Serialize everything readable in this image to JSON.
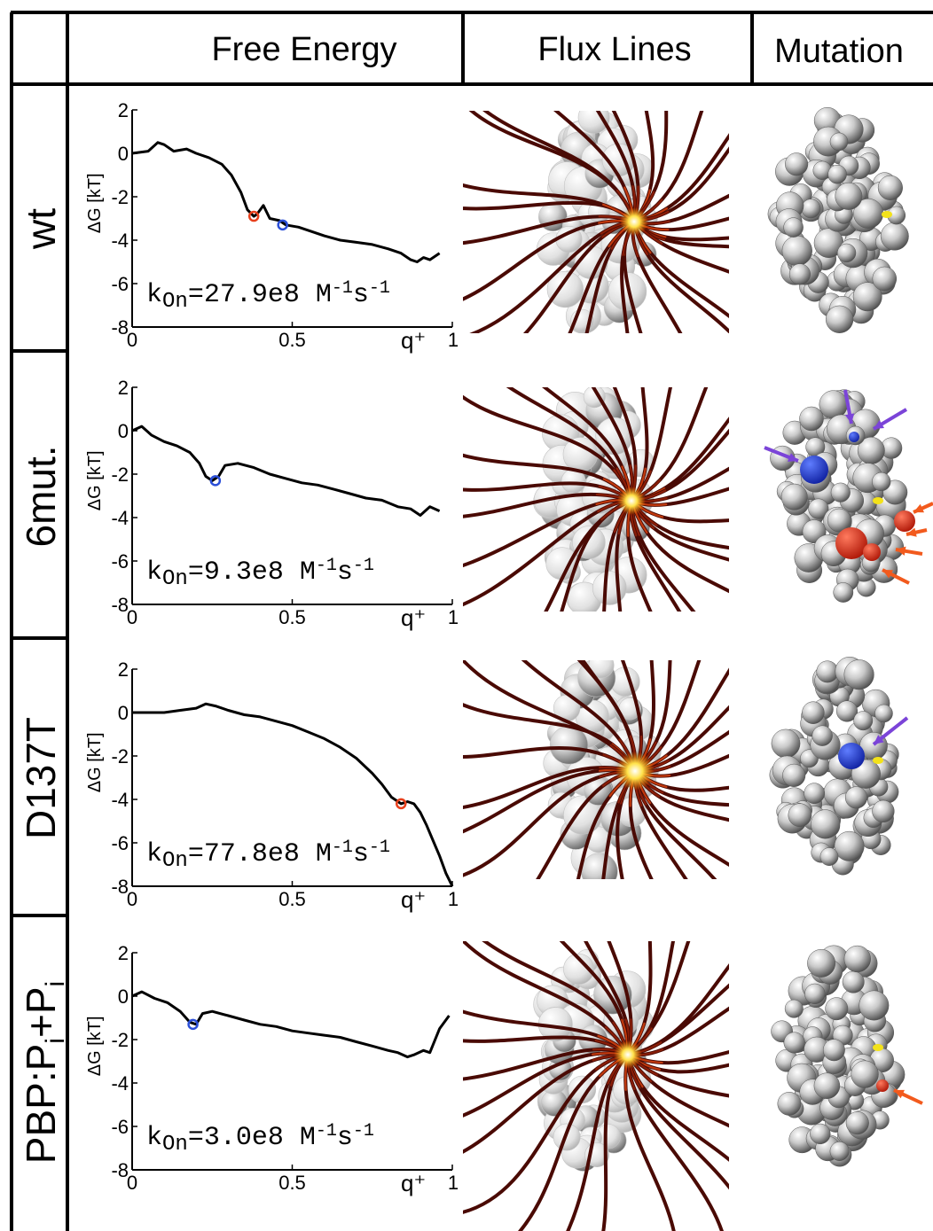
{
  "headers": {
    "free_energy": "Free Energy",
    "flux_lines": "Flux Lines",
    "mutation": "Mutation"
  },
  "chart_data": [
    {
      "type": "line",
      "row_label": "wt",
      "ylabel": "ΔG [kT]",
      "xlabel": "q⁺",
      "xlim": [
        0,
        1
      ],
      "ylim": [
        -8,
        2
      ],
      "xticks": [
        "0",
        "0.5",
        "1"
      ],
      "yticks": [
        "2",
        "0",
        "-2",
        "-4",
        "-6",
        "-8"
      ],
      "kon": {
        "prefix": "k",
        "sub": "On",
        "value": "=27.9e8 M",
        "exp1": "-1",
        "mid": "s",
        "exp2": "-1"
      },
      "x": [
        0,
        0.05,
        0.08,
        0.1,
        0.13,
        0.17,
        0.2,
        0.24,
        0.28,
        0.31,
        0.34,
        0.36,
        0.38,
        0.39,
        0.41,
        0.43,
        0.46,
        0.48,
        0.52,
        0.56,
        0.6,
        0.65,
        0.7,
        0.75,
        0.8,
        0.84,
        0.87,
        0.89,
        0.91,
        0.93,
        0.96
      ],
      "y": [
        0,
        0.1,
        0.5,
        0.4,
        0.1,
        0.2,
        0.0,
        -0.2,
        -0.5,
        -1.0,
        -1.8,
        -2.6,
        -2.9,
        -2.8,
        -2.4,
        -3.0,
        -3.1,
        -3.3,
        -3.4,
        -3.6,
        -3.8,
        -4.0,
        -4.1,
        -4.2,
        -4.4,
        -4.6,
        -4.9,
        -5.0,
        -4.8,
        -4.9,
        -4.6
      ],
      "markers": [
        {
          "x": 0.38,
          "y": -2.9,
          "color": "#e8401c"
        },
        {
          "x": 0.47,
          "y": -3.3,
          "color": "#2b4fd8"
        }
      ]
    },
    {
      "type": "line",
      "row_label": "6mut.",
      "ylabel": "ΔG [kT]",
      "xlabel": "q⁺",
      "xlim": [
        0,
        1
      ],
      "ylim": [
        -8,
        2
      ],
      "xticks": [
        "0",
        "0.5",
        "1"
      ],
      "yticks": [
        "2",
        "0",
        "-2",
        "-4",
        "-6",
        "-8"
      ],
      "kon": {
        "prefix": "k",
        "sub": "On",
        "value": "=9.3e8 M",
        "exp1": "-1",
        "mid": "s",
        "exp2": "-1"
      },
      "x": [
        0,
        0.03,
        0.06,
        0.1,
        0.14,
        0.18,
        0.21,
        0.23,
        0.25,
        0.27,
        0.29,
        0.33,
        0.38,
        0.43,
        0.48,
        0.53,
        0.58,
        0.63,
        0.68,
        0.73,
        0.78,
        0.83,
        0.87,
        0.9,
        0.93,
        0.96
      ],
      "y": [
        0,
        0.2,
        -0.2,
        -0.5,
        -0.7,
        -1.0,
        -1.5,
        -2.1,
        -2.3,
        -2.1,
        -1.6,
        -1.5,
        -1.7,
        -2.0,
        -2.2,
        -2.4,
        -2.5,
        -2.7,
        -2.9,
        -3.1,
        -3.2,
        -3.5,
        -3.6,
        -3.9,
        -3.5,
        -3.7
      ],
      "markers": [
        {
          "x": 0.26,
          "y": -2.3,
          "color": "#2b4fd8"
        }
      ]
    },
    {
      "type": "line",
      "row_label": "D137T",
      "ylabel": "ΔG [kT]",
      "xlabel": "q⁺",
      "xlim": [
        0,
        1
      ],
      "ylim": [
        -8,
        2
      ],
      "xticks": [
        "0",
        "0.5",
        "1"
      ],
      "yticks": [
        "2",
        "0",
        "-2",
        "-4",
        "-6",
        "-8"
      ],
      "kon": {
        "prefix": "k",
        "sub": "On",
        "value": "=77.8e8 M",
        "exp1": "-1",
        "mid": "s",
        "exp2": "-1"
      },
      "x": [
        0,
        0.05,
        0.1,
        0.15,
        0.2,
        0.23,
        0.26,
        0.3,
        0.35,
        0.4,
        0.45,
        0.5,
        0.55,
        0.6,
        0.65,
        0.7,
        0.75,
        0.78,
        0.81,
        0.84,
        0.86,
        0.88,
        0.9,
        0.92,
        0.94,
        0.96,
        0.98,
        1.0
      ],
      "y": [
        0,
        0,
        0,
        0.1,
        0.2,
        0.4,
        0.3,
        0.1,
        -0.1,
        -0.2,
        -0.4,
        -0.6,
        -0.9,
        -1.2,
        -1.6,
        -2.1,
        -2.8,
        -3.3,
        -3.9,
        -4.2,
        -4.1,
        -4.2,
        -4.6,
        -5.2,
        -5.9,
        -6.6,
        -7.4,
        -8.0
      ],
      "markers": [
        {
          "x": 0.84,
          "y": -4.2,
          "color": "#e8401c"
        }
      ]
    },
    {
      "type": "line",
      "row_label": "PBP:P",
      "row_label_sub1": "i",
      "row_label_mid": "+P",
      "row_label_sub2": "i",
      "ylabel": "ΔG [kT]",
      "xlabel": "q⁺",
      "xlim": [
        0,
        1
      ],
      "ylim": [
        -8,
        2
      ],
      "xticks": [
        "0",
        "0.5",
        "1"
      ],
      "yticks": [
        "2",
        "0",
        "-2",
        "-4",
        "-6",
        "-8"
      ],
      "kon": {
        "prefix": "k",
        "sub": "On",
        "value": "=3.0e8 M",
        "exp1": "-1",
        "mid": "s",
        "exp2": "-1"
      },
      "x": [
        0,
        0.03,
        0.07,
        0.11,
        0.15,
        0.18,
        0.2,
        0.22,
        0.25,
        0.3,
        0.35,
        0.4,
        0.45,
        0.5,
        0.55,
        0.6,
        0.65,
        0.7,
        0.75,
        0.8,
        0.83,
        0.86,
        0.88,
        0.91,
        0.93,
        0.96,
        0.99
      ],
      "y": [
        0,
        0.2,
        -0.1,
        -0.3,
        -0.7,
        -1.2,
        -1.3,
        -0.8,
        -0.7,
        -0.9,
        -1.1,
        -1.3,
        -1.4,
        -1.6,
        -1.7,
        -1.8,
        -1.9,
        -2.1,
        -2.3,
        -2.5,
        -2.6,
        -2.8,
        -2.7,
        -2.5,
        -2.6,
        -1.5,
        -0.9
      ],
      "markers": [
        {
          "x": 0.19,
          "y": -1.3,
          "color": "#2b4fd8"
        }
      ]
    }
  ],
  "colors": {
    "red_marker": "#e8401c",
    "blue_marker": "#2b4fd8",
    "flux_dark": "#5a0d05",
    "flux_mid": "#b8340c",
    "flux_hot": "#ffd21a"
  }
}
